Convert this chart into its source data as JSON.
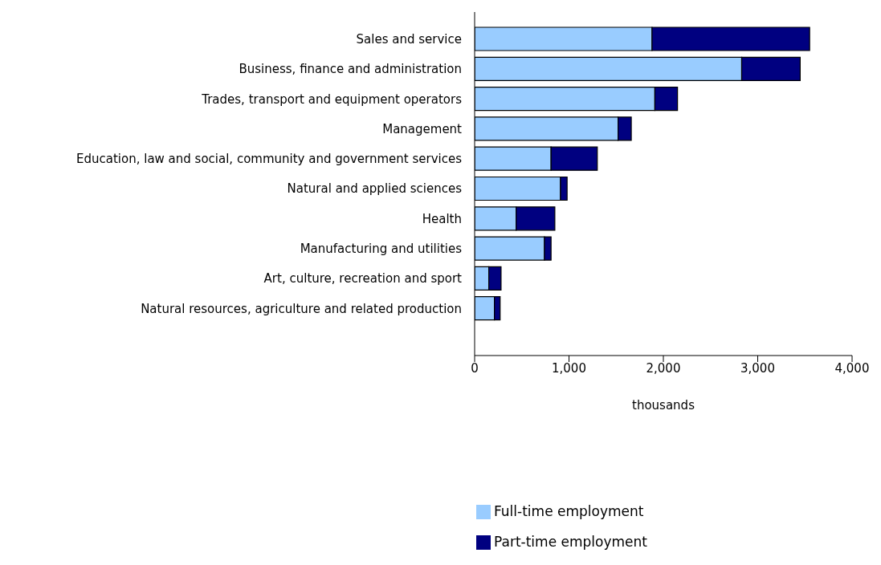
{
  "chart_data": {
    "type": "bar",
    "orientation": "horizontal",
    "stacked": true,
    "xlabel": "thousands",
    "categories": [
      "Sales and service",
      "Business, finance and administration",
      "Trades, transport and equipment operators",
      "Management",
      "Education, law and social, community and government services",
      "Natural and applied sciences",
      "Health",
      "Manufacturing and utilities",
      "Art, culture, recreation and sport",
      "Natural resources, agriculture and related production"
    ],
    "series": [
      {
        "name": "Full-time employment",
        "color": "#99ccff",
        "values": [
          1880,
          2830,
          1910,
          1520,
          810,
          910,
          440,
          740,
          150,
          210
        ]
      },
      {
        "name": "Part-time employment",
        "color": "#000080",
        "values": [
          1670,
          620,
          240,
          140,
          490,
          70,
          410,
          70,
          130,
          60
        ]
      }
    ],
    "xlim": [
      0,
      4000
    ],
    "xticks": [
      0,
      {
        "value": 1000,
        "label": "1,000"
      },
      {
        "value": 2000,
        "label": "2,000"
      },
      {
        "value": 3000,
        "label": "3,000"
      },
      {
        "value": 4000,
        "label": "4,000"
      }
    ],
    "grid": false,
    "legend": "bottom"
  }
}
